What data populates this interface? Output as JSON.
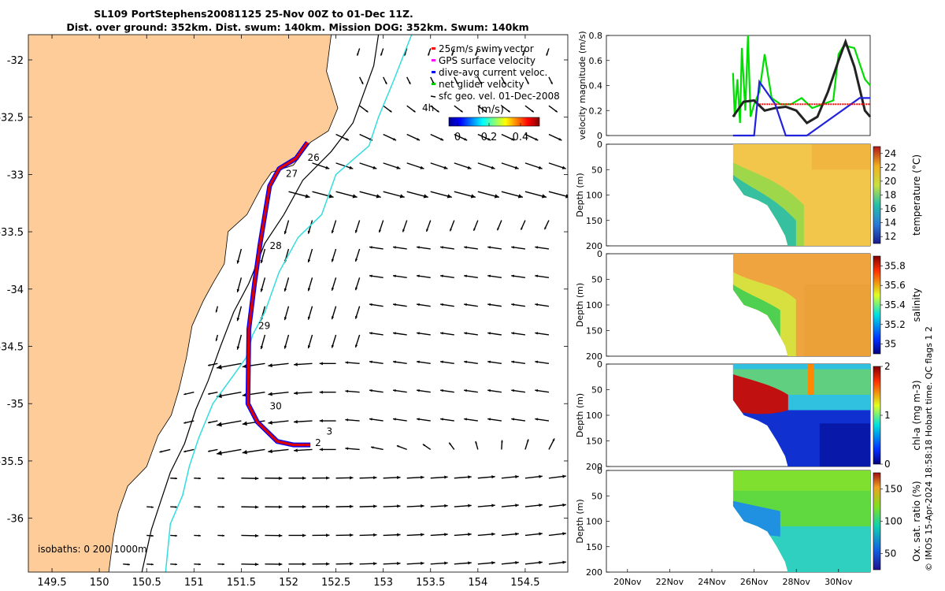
{
  "map": {
    "title1": "SL109 PortStephens20081125 25-Nov 00Z to 01-Dec 11Z.",
    "title2": "Dist. over ground: 352km. Dist. swum: 140km. Mission DOG: 352km. Swum: 140km",
    "isobath_label": "isobaths: 0   200  1000m",
    "colorbar_unit": "(m/s)",
    "colorbar_ticks": [
      "0",
      "0.2",
      "0.4"
    ],
    "legend": [
      {
        "label": "25cm/s swim vector",
        "color": "#ff0000"
      },
      {
        "label": "GPS surface velocity",
        "color": "#ff00ff"
      },
      {
        "label": "dive-avg current veloc.",
        "color": "#0000ff"
      },
      {
        "label": "net glider velocity",
        "color": "#00cc00"
      },
      {
        "label": "sfc geo. vel. 01-Dec-2008",
        "color": "#000000"
      }
    ],
    "legend_extra": "4h",
    "day_labels": [
      {
        "t": "26",
        "lon": 152.2,
        "lat": -32.88
      },
      {
        "t": "27",
        "lon": 151.97,
        "lat": -33.02
      },
      {
        "t": "28",
        "lon": 151.8,
        "lat": -33.65
      },
      {
        "t": "29",
        "lon": 151.68,
        "lat": -34.35
      },
      {
        "t": "30",
        "lon": 151.8,
        "lat": -35.05
      },
      {
        "t": "2",
        "lon": 152.28,
        "lat": -35.37
      },
      {
        "t": "3",
        "lon": 152.4,
        "lat": -35.27
      }
    ]
  },
  "chart_data": [
    {
      "type": "line",
      "name": "map",
      "xlabel": "",
      "ylabel": "",
      "xlim": [
        149.25,
        154.95
      ],
      "ylim": [
        -36.47,
        -31.78
      ],
      "xticks": [
        "149.5",
        "150",
        "150.5",
        "151",
        "151.5",
        "152",
        "152.5",
        "153",
        "153.5",
        "154",
        "154.5"
      ],
      "yticks": [
        "-32",
        "-32.5",
        "-33",
        "-33.5",
        "-34",
        "-34.5",
        "-35",
        "-35.5",
        "-36"
      ],
      "coast": [
        [
          154.95,
          -31.78
        ],
        [
          152.45,
          -31.78
        ],
        [
          152.4,
          -32.1
        ],
        [
          152.52,
          -32.42
        ],
        [
          152.42,
          -32.62
        ],
        [
          152.23,
          -32.72
        ],
        [
          152.05,
          -32.92
        ],
        [
          151.82,
          -32.98
        ],
        [
          151.72,
          -33.1
        ],
        [
          151.56,
          -33.35
        ],
        [
          151.36,
          -33.5
        ],
        [
          151.32,
          -33.78
        ],
        [
          151.2,
          -33.95
        ],
        [
          151.1,
          -34.1
        ],
        [
          150.98,
          -34.32
        ],
        [
          150.92,
          -34.6
        ],
        [
          150.84,
          -34.88
        ],
        [
          150.76,
          -35.1
        ],
        [
          150.62,
          -35.28
        ],
        [
          150.5,
          -35.55
        ],
        [
          150.3,
          -35.72
        ],
        [
          150.2,
          -35.95
        ],
        [
          150.15,
          -36.15
        ],
        [
          150.1,
          -36.47
        ]
      ],
      "track": [
        [
          152.2,
          -32.72
        ],
        [
          152.08,
          -32.86
        ],
        [
          151.9,
          -32.95
        ],
        [
          151.8,
          -33.1
        ],
        [
          151.7,
          -33.6
        ],
        [
          151.64,
          -33.95
        ],
        [
          151.58,
          -34.35
        ],
        [
          151.57,
          -35.0
        ],
        [
          151.67,
          -35.16
        ],
        [
          151.88,
          -35.33
        ],
        [
          152.05,
          -35.36
        ],
        [
          152.23,
          -35.36
        ]
      ],
      "isobath200": [
        [
          152.95,
          -31.78
        ],
        [
          152.9,
          -32.05
        ],
        [
          152.68,
          -32.55
        ],
        [
          152.45,
          -32.8
        ],
        [
          152.15,
          -33.05
        ],
        [
          151.95,
          -33.35
        ],
        [
          151.75,
          -33.6
        ],
        [
          151.58,
          -33.95
        ],
        [
          151.42,
          -34.2
        ],
        [
          151.28,
          -34.5
        ],
        [
          151.15,
          -34.8
        ],
        [
          151.02,
          -35.05
        ],
        [
          150.9,
          -35.35
        ],
        [
          150.75,
          -35.6
        ],
        [
          150.65,
          -35.85
        ],
        [
          150.55,
          -36.1
        ],
        [
          150.45,
          -36.47
        ]
      ],
      "isobath1000": [
        [
          153.3,
          -31.78
        ],
        [
          153.1,
          -32.2
        ],
        [
          152.95,
          -32.5
        ],
        [
          152.85,
          -32.75
        ],
        [
          152.5,
          -33.0
        ],
        [
          152.35,
          -33.35
        ],
        [
          152.1,
          -33.55
        ],
        [
          151.9,
          -33.85
        ],
        [
          151.75,
          -34.2
        ],
        [
          151.62,
          -34.4
        ],
        [
          151.55,
          -34.6
        ],
        [
          151.42,
          -34.75
        ],
        [
          151.2,
          -35.0
        ],
        [
          151.05,
          -35.3
        ],
        [
          150.95,
          -35.55
        ],
        [
          150.88,
          -35.8
        ],
        [
          150.75,
          -36.05
        ],
        [
          150.7,
          -36.47
        ]
      ]
    },
    {
      "type": "line",
      "name": "velocity",
      "ylabel": "velocity magnitude (m/s)",
      "yticks": [
        "0",
        "0.2",
        "0.4",
        "0.6",
        "0.8"
      ],
      "ylim": [
        0,
        0.8
      ],
      "xlim": [
        "2008-11-19",
        "2008-12-01T12:00"
      ],
      "series": [
        {
          "color": "#00dd00",
          "x": [
            "2008-11-25",
            "2008-11-25T02:00",
            "2008-11-25T05:00",
            "2008-11-25T08:00",
            "2008-11-25T10:00",
            "2008-11-25T14:00",
            "2008-11-25T17:00",
            "2008-11-25T20:00",
            "2008-11-26T00:00",
            "2008-11-26T06:00",
            "2008-11-26T12:00",
            "2008-11-26T20:00",
            "2008-11-27T06:00",
            "2008-11-27T18:00",
            "2008-11-28T06:00",
            "2008-11-28T18:00",
            "2008-11-29T06:00",
            "2008-11-29T18:00",
            "2008-11-30T00:00",
            "2008-11-30T06:00",
            "2008-11-30T18:00",
            "2008-12-01T06:00",
            "2008-12-01T12:00"
          ],
          "values": [
            0.5,
            0.15,
            0.45,
            0.1,
            0.7,
            0.2,
            0.8,
            0.15,
            0.25,
            0.35,
            0.65,
            0.3,
            0.25,
            0.25,
            0.3,
            0.22,
            0.25,
            0.28,
            0.65,
            0.72,
            0.7,
            0.45,
            0.4
          ]
        },
        {
          "color": "#222222",
          "x": [
            "2008-11-25",
            "2008-11-25T12:00",
            "2008-11-26T00:00",
            "2008-11-26T12:00",
            "2008-11-27T00:00",
            "2008-11-27T12:00",
            "2008-11-28T00:00",
            "2008-11-28T12:00",
            "2008-11-29T00:00",
            "2008-11-29T12:00",
            "2008-11-30T00:00",
            "2008-11-30T08:00",
            "2008-11-30T18:00",
            "2008-12-01T06:00",
            "2008-12-01T12:00"
          ],
          "values": [
            0.15,
            0.27,
            0.28,
            0.2,
            0.22,
            0.23,
            0.2,
            0.1,
            0.15,
            0.35,
            0.6,
            0.75,
            0.55,
            0.2,
            0.15
          ]
        },
        {
          "color": "#2222dd",
          "x": [
            "2008-11-25",
            "2008-11-26T00:00",
            "2008-11-26T06:00",
            "2008-11-27T00:00",
            "2008-11-27T12:00",
            "2008-11-28T12:00",
            "2008-12-01T00:00",
            "2008-12-01T12:00"
          ],
          "values": [
            0,
            0,
            0.43,
            0.25,
            0,
            0,
            0.3,
            0.3
          ]
        },
        {
          "color": "#ff0000",
          "x": [
            "2008-11-26T06:00",
            "2008-12-01T12:00"
          ],
          "values": [
            0.25,
            0.25
          ]
        }
      ]
    },
    {
      "type": "heatmap",
      "name": "temperature",
      "ylabel": "Depth (m)",
      "cblabel": "temperature (°C)",
      "cbticks": [
        "12",
        "14",
        "16",
        "18",
        "20",
        "22",
        "24"
      ],
      "yticks": [
        "0",
        "50",
        "100",
        "150",
        "200"
      ],
      "ylim": [
        0,
        200
      ]
    },
    {
      "type": "heatmap",
      "name": "salinity",
      "ylabel": "Depth (m)",
      "cblabel": "salinity",
      "cbticks": [
        "35",
        "35.2",
        "35.4",
        "35.6",
        "35.8"
      ],
      "yticks": [
        "0",
        "50",
        "100",
        "150",
        "200"
      ],
      "ylim": [
        0,
        200
      ]
    },
    {
      "type": "heatmap",
      "name": "chla",
      "ylabel": "Depth (m)",
      "cblabel": "chl-a (mg m-3)",
      "cbticks": [
        "0",
        "1",
        "2"
      ],
      "yticks": [
        "0",
        "50",
        "100",
        "150",
        "200"
      ],
      "ylim": [
        0,
        200
      ]
    },
    {
      "type": "heatmap",
      "name": "oxygen",
      "ylabel": "Depth (m)",
      "cblabel": "Ox. sat. ratio (%)",
      "cbticks": [
        "50",
        "100",
        "150"
      ],
      "yticks": [
        "0",
        "50",
        "100",
        "150",
        "200"
      ],
      "ylim": [
        0,
        200
      ],
      "xticks": [
        "20Nov",
        "22Nov",
        "24Nov",
        "26Nov",
        "28Nov",
        "30Nov"
      ]
    }
  ],
  "side_note": "© IMOS 15-Apr-2024 18:58:18 Hobart time. QC flags 1  2"
}
